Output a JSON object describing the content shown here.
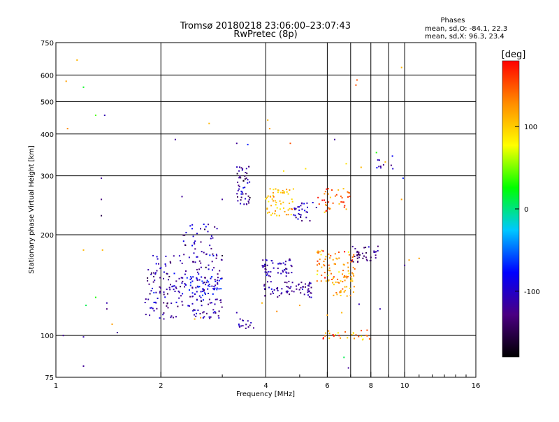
{
  "chart_data": {
    "type": "scatter",
    "title": "Tromsø 20180218 23:06:00–23:07:43",
    "subtitle": "RwPretec (8p)",
    "xlabel": "Frequency [MHz]",
    "ylabel": "Stationary phase Virtual Height [km]",
    "x_scale": "log",
    "y_scale": "log",
    "xlim": [
      1,
      16
    ],
    "ylim": [
      75,
      750
    ],
    "x_ticks": [
      1,
      2,
      4,
      6,
      8,
      10,
      16
    ],
    "x_minor_gridlines": [
      7,
      9
    ],
    "y_ticks": [
      75,
      100,
      200,
      300,
      400,
      500,
      600,
      750
    ],
    "grid": true,
    "stats_header": "Phases",
    "stats": [
      "mean, sd,O: -84.1, 22.3",
      "mean, sd,X:  96.3, 23.4"
    ],
    "colorbar": {
      "label": "[deg]",
      "min": -180,
      "max": 180,
      "ticks": [
        100,
        0,
        -100
      ],
      "colors": [
        "#000000",
        "#4b0082",
        "#0000ff",
        "#00c8ff",
        "#00ff00",
        "#ffff00",
        "#ff8c00",
        "#ff0000"
      ]
    },
    "clusters": [
      {
        "name": "F1 low echoes",
        "x_range": [
          1.8,
          3.0
        ],
        "y_range": [
          112,
          175
        ],
        "phase": -115,
        "phase_sd": 20,
        "n": 220
      },
      {
        "name": "F1 cyan band",
        "x_range": [
          2.3,
          3.0
        ],
        "y_range": [
          130,
          150
        ],
        "phase": -80,
        "phase_sd": 15,
        "n": 40
      },
      {
        "name": "F1 upper",
        "x_range": [
          2.3,
          2.9
        ],
        "y_range": [
          170,
          215
        ],
        "phase": -110,
        "phase_sd": 20,
        "n": 40
      },
      {
        "name": "F2 trace at 300 km",
        "x_range": [
          3.3,
          3.6
        ],
        "y_range": [
          245,
          320
        ],
        "phase": -120,
        "phase_sd": 20,
        "n": 50
      },
      {
        "name": "Middle low band",
        "x_range": [
          3.9,
          5.4
        ],
        "y_range": [
          130,
          145
        ],
        "phase": -115,
        "phase_sd": 15,
        "n": 70
      },
      {
        "name": "Middle upper band",
        "x_range": [
          3.9,
          4.8
        ],
        "y_range": [
          150,
          170
        ],
        "phase": -110,
        "phase_sd": 15,
        "n": 50
      },
      {
        "name": "F2 yellow near 4.4 MHz",
        "x_range": [
          4.0,
          4.8
        ],
        "y_range": [
          228,
          275
        ],
        "phase": 110,
        "phase_sd": 20,
        "n": 60
      },
      {
        "name": "F2 blue near 5 MHz",
        "x_range": [
          4.8,
          5.6
        ],
        "y_range": [
          220,
          250
        ],
        "phase": -110,
        "phase_sd": 20,
        "n": 30
      },
      {
        "name": "F2 orange near 6.3 MHz",
        "x_range": [
          5.6,
          7.0
        ],
        "y_range": [
          230,
          275
        ],
        "phase": 140,
        "phase_sd": 20,
        "n": 40
      },
      {
        "name": "X-mode orange band",
        "x_range": [
          5.6,
          7.2
        ],
        "y_range": [
          145,
          180
        ],
        "phase": 130,
        "phase_sd": 25,
        "n": 80
      },
      {
        "name": "X-mode yellow band",
        "x_range": [
          6.2,
          7.2
        ],
        "y_range": [
          130,
          150
        ],
        "phase": 110,
        "phase_sd": 20,
        "n": 30
      },
      {
        "name": "Upper O-mode near 8 MHz",
        "x_range": [
          7.0,
          8.4
        ],
        "y_range": [
          165,
          185
        ],
        "phase": -125,
        "phase_sd": 15,
        "n": 40
      },
      {
        "name": "E-region echoes",
        "x_range": [
          5.8,
          8.0
        ],
        "y_range": [
          97,
          104
        ],
        "phase": 130,
        "phase_sd": 30,
        "n": 30
      },
      {
        "name": "Sporadic 3.5 MHz",
        "x_range": [
          3.3,
          3.7
        ],
        "y_range": [
          105,
          112
        ],
        "phase": -110,
        "phase_sd": 15,
        "n": 15
      },
      {
        "name": "High echoes near 8.5 MHz",
        "x_range": [
          8.0,
          9.5
        ],
        "y_range": [
          310,
          345
        ],
        "phase": -100,
        "phase_sd": 20,
        "n": 10
      }
    ],
    "points": [
      {
        "x": 1.07,
        "y": 575,
        "phase": 120
      },
      {
        "x": 1.08,
        "y": 415,
        "phase": 130
      },
      {
        "x": 1.15,
        "y": 665,
        "phase": 110
      },
      {
        "x": 1.2,
        "y": 552,
        "phase": 20
      },
      {
        "x": 1.3,
        "y": 455,
        "phase": 40
      },
      {
        "x": 1.38,
        "y": 455,
        "phase": -110
      },
      {
        "x": 1.35,
        "y": 295,
        "phase": -120
      },
      {
        "x": 1.35,
        "y": 255,
        "phase": -130
      },
      {
        "x": 1.35,
        "y": 228,
        "phase": -150
      },
      {
        "x": 1.36,
        "y": 180,
        "phase": 110
      },
      {
        "x": 1.2,
        "y": 180,
        "phase": 110
      },
      {
        "x": 1.3,
        "y": 130,
        "phase": 30
      },
      {
        "x": 1.22,
        "y": 123,
        "phase": 10
      },
      {
        "x": 1.4,
        "y": 120,
        "phase": -130
      },
      {
        "x": 1.4,
        "y": 125,
        "phase": -110
      },
      {
        "x": 1.45,
        "y": 108,
        "phase": 120
      },
      {
        "x": 1.5,
        "y": 102,
        "phase": -120
      },
      {
        "x": 1.05,
        "y": 100,
        "phase": -120
      },
      {
        "x": 1.2,
        "y": 99,
        "phase": -110
      },
      {
        "x": 1.2,
        "y": 81,
        "phase": -120
      },
      {
        "x": 2.2,
        "y": 385,
        "phase": -120
      },
      {
        "x": 2.75,
        "y": 430,
        "phase": 110
      },
      {
        "x": 3.3,
        "y": 375,
        "phase": -120
      },
      {
        "x": 3.55,
        "y": 372,
        "phase": -70
      },
      {
        "x": 4.05,
        "y": 440,
        "phase": 110
      },
      {
        "x": 4.1,
        "y": 415,
        "phase": 120
      },
      {
        "x": 4.7,
        "y": 375,
        "phase": 150
      },
      {
        "x": 4.5,
        "y": 310,
        "phase": 90
      },
      {
        "x": 5.2,
        "y": 315,
        "phase": 90
      },
      {
        "x": 6.3,
        "y": 385,
        "phase": -120
      },
      {
        "x": 7.3,
        "y": 580,
        "phase": 150
      },
      {
        "x": 7.25,
        "y": 560,
        "phase": 150
      },
      {
        "x": 9.8,
        "y": 632,
        "phase": 110
      },
      {
        "x": 9.9,
        "y": 295,
        "phase": -70
      },
      {
        "x": 9.8,
        "y": 255,
        "phase": 120
      },
      {
        "x": 10.3,
        "y": 168,
        "phase": 120
      },
      {
        "x": 11.0,
        "y": 170,
        "phase": 120
      },
      {
        "x": 10.0,
        "y": 162,
        "phase": -120
      },
      {
        "x": 8.8,
        "y": 330,
        "phase": 110
      },
      {
        "x": 8.3,
        "y": 352,
        "phase": 30
      },
      {
        "x": 7.5,
        "y": 318,
        "phase": 110
      },
      {
        "x": 6.8,
        "y": 326,
        "phase": 90
      },
      {
        "x": 3.0,
        "y": 255,
        "phase": -120
      },
      {
        "x": 2.3,
        "y": 260,
        "phase": -120
      },
      {
        "x": 6.7,
        "y": 86,
        "phase": 10
      },
      {
        "x": 6.9,
        "y": 80,
        "phase": -120
      },
      {
        "x": 6.0,
        "y": 115,
        "phase": 120
      },
      {
        "x": 6.6,
        "y": 117,
        "phase": 110
      },
      {
        "x": 7.4,
        "y": 124,
        "phase": -110
      },
      {
        "x": 8.5,
        "y": 120,
        "phase": -110
      },
      {
        "x": 4.3,
        "y": 118,
        "phase": 130
      },
      {
        "x": 5.0,
        "y": 123,
        "phase": 120
      },
      {
        "x": 3.9,
        "y": 125,
        "phase": 110
      },
      {
        "x": 3.3,
        "y": 117,
        "phase": -110
      },
      {
        "x": 2.5,
        "y": 112,
        "phase": 110
      },
      {
        "x": 2.6,
        "y": 113,
        "phase": 120
      }
    ]
  }
}
